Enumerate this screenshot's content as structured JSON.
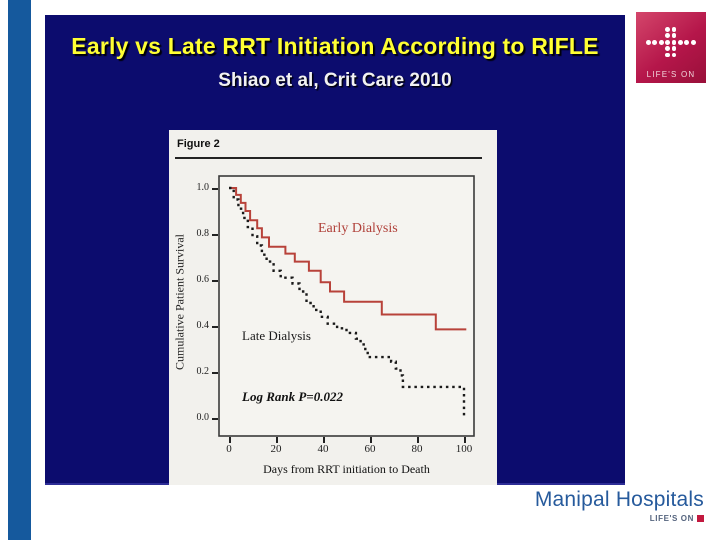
{
  "slide": {
    "title": "Early vs Late RRT Initiation According to RIFLE",
    "subtitle": "Shiao et al, Crit Care 2010"
  },
  "figure": {
    "label": "Figure 2"
  },
  "chart_data": {
    "type": "line",
    "subtype": "kaplan-meier-step",
    "title": "Figure 2",
    "xlabel": "Days from RRT initiation to Death",
    "ylabel": "Cumulative Patient Survival",
    "xlim": [
      0,
      100
    ],
    "ylim": [
      0,
      1
    ],
    "x_ticks": [
      0,
      20,
      40,
      60,
      80,
      100
    ],
    "x_tick_labels": [
      "0",
      "20",
      "40",
      "60",
      "80",
      "100"
    ],
    "y_ticks": [
      1.0,
      0.8,
      0.6,
      0.4,
      0.2,
      0.0
    ],
    "y_tick_labels": [
      "1.0",
      "0.8",
      "0.6",
      "0.4",
      "0.2",
      "0.0"
    ],
    "p_value_note": "Log Rank P=0.022",
    "grid": false,
    "legend_position": "in-plot annotations",
    "series": [
      {
        "name": "Early Dialysis",
        "style": "solid",
        "color": "#b8423a",
        "points": [
          [
            0,
            1.0
          ],
          [
            3,
            0.97
          ],
          [
            5,
            0.935
          ],
          [
            7,
            0.9
          ],
          [
            9,
            0.86
          ],
          [
            12,
            0.825
          ],
          [
            14,
            0.785
          ],
          [
            17,
            0.745
          ],
          [
            24,
            0.715
          ],
          [
            28,
            0.68
          ],
          [
            34,
            0.64
          ],
          [
            39,
            0.59
          ],
          [
            43,
            0.55
          ],
          [
            49,
            0.505
          ],
          [
            65,
            0.45
          ],
          [
            88,
            0.385
          ],
          [
            101,
            0.385
          ]
        ]
      },
      {
        "name": "Late Dialysis",
        "style": "dotted",
        "color": "#1a1a1a",
        "points": [
          [
            0,
            1.0
          ],
          [
            2,
            0.95
          ],
          [
            4,
            0.91
          ],
          [
            6,
            0.87
          ],
          [
            8,
            0.83
          ],
          [
            10,
            0.79
          ],
          [
            12,
            0.75
          ],
          [
            14,
            0.71
          ],
          [
            16,
            0.68
          ],
          [
            19,
            0.64
          ],
          [
            22,
            0.61
          ],
          [
            27,
            0.585
          ],
          [
            30,
            0.55
          ],
          [
            33,
            0.5
          ],
          [
            36,
            0.47
          ],
          [
            39,
            0.44
          ],
          [
            42,
            0.41
          ],
          [
            46,
            0.39
          ],
          [
            50,
            0.37
          ],
          [
            54,
            0.345
          ],
          [
            56,
            0.32
          ],
          [
            58,
            0.29
          ],
          [
            59,
            0.265
          ],
          [
            69,
            0.245
          ],
          [
            71,
            0.215
          ],
          [
            73,
            0.185
          ],
          [
            74,
            0.135
          ],
          [
            99,
            0.135
          ],
          [
            100,
            0.01
          ],
          [
            101,
            0.01
          ]
        ]
      }
    ]
  },
  "branding": {
    "logo_text": "LIFE'S ON",
    "footer_name": "Manipal Hospitals",
    "footer_tagline": "LIFE'S ON"
  },
  "colors": {
    "slide_background": "#0c0c6e",
    "left_bar": "#15599d",
    "title_text": "#ffff33",
    "logo_crimson": "#b5164a",
    "footer_blue": "#265a9c",
    "early_curve": "#b8423a",
    "late_curve": "#1a1a1a"
  }
}
